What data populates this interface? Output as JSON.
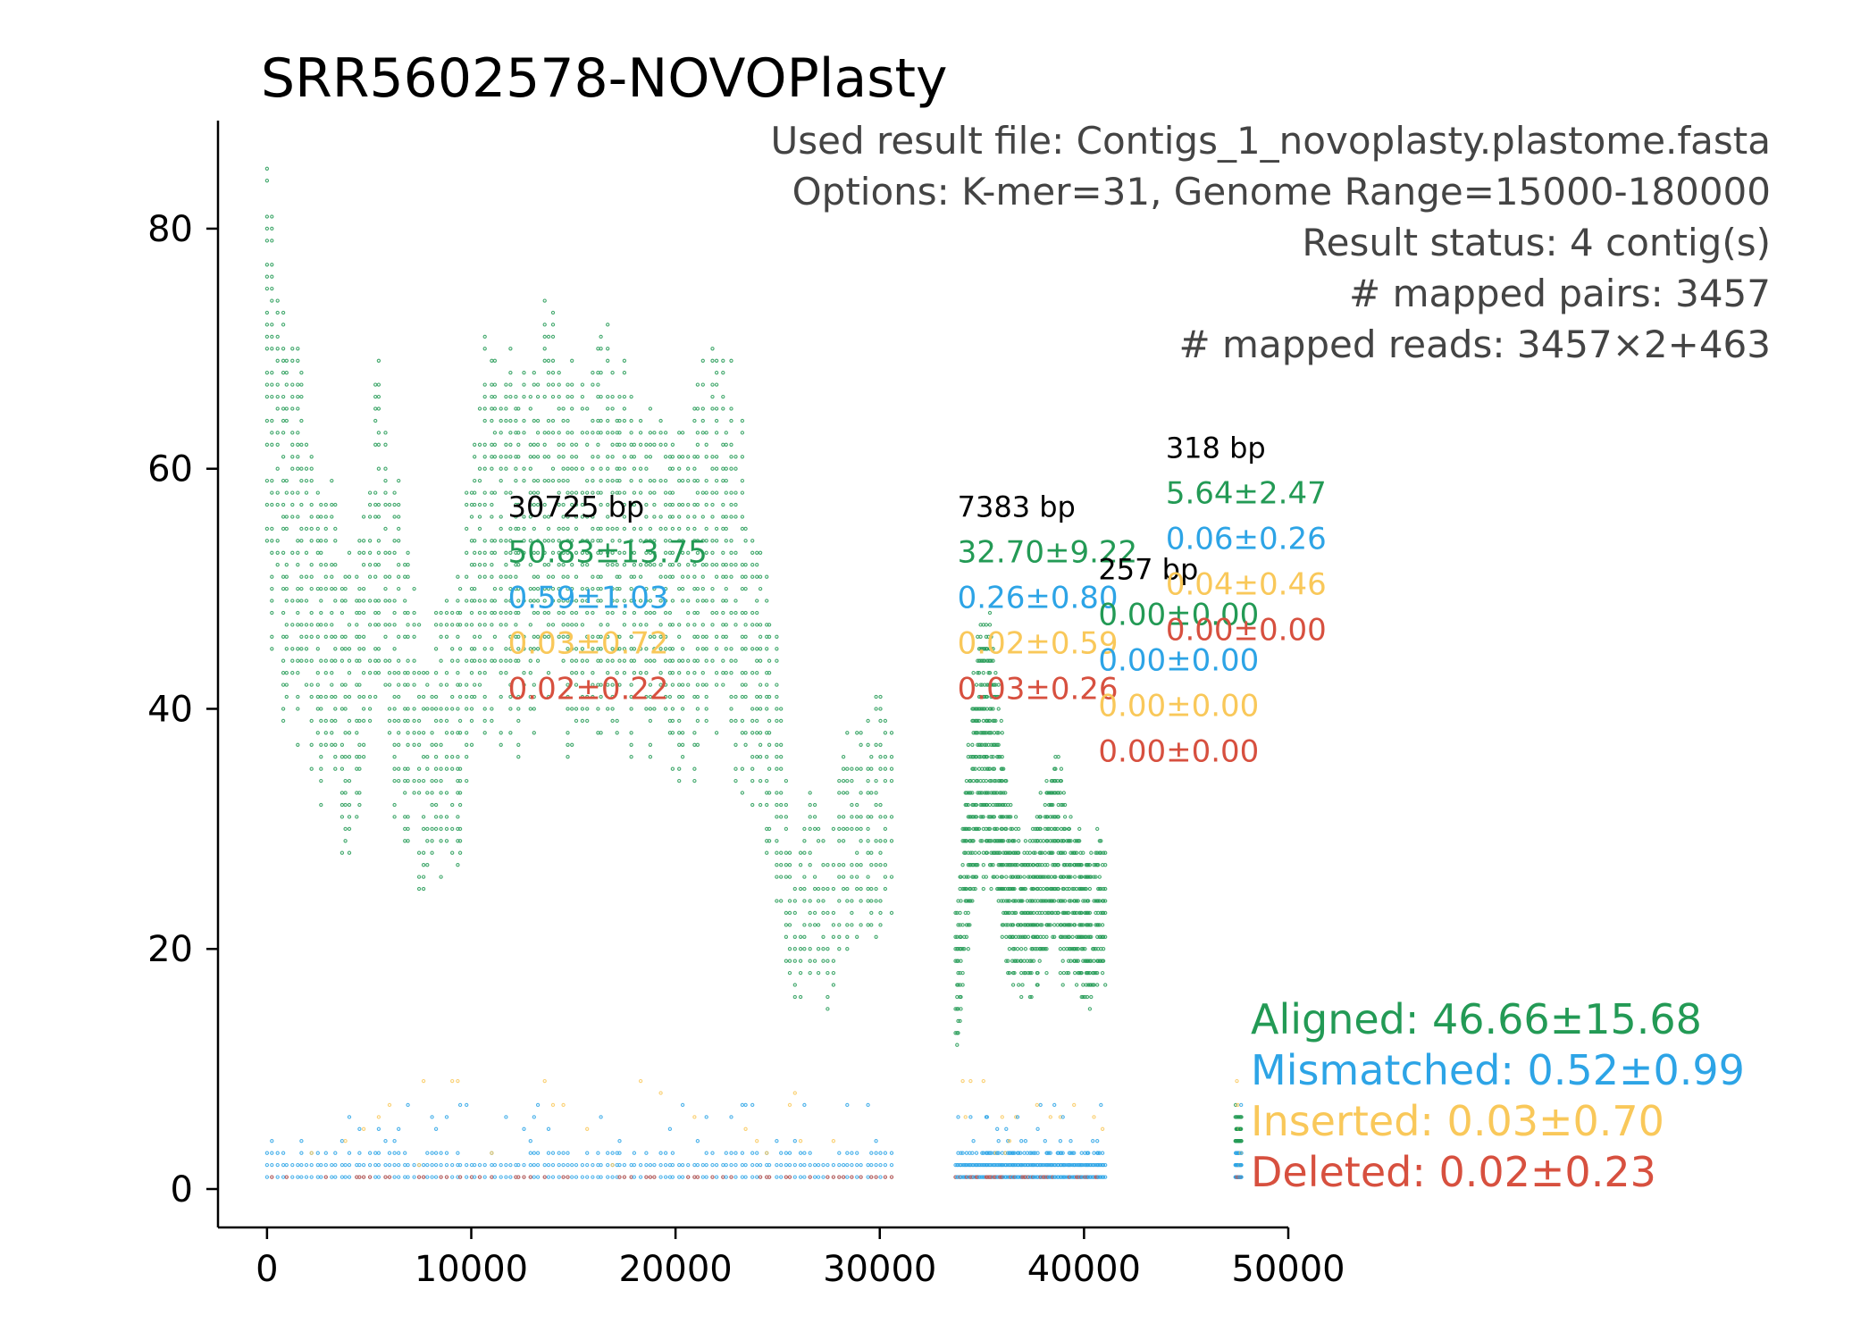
{
  "chart_data": {
    "type": "scatter",
    "title": "SRR5602578-NOVOPlasty",
    "xlabel": "",
    "ylabel": "",
    "xlim": [
      -2400,
      50000
    ],
    "ylim": [
      -3.2,
      89
    ],
    "x_ticks": [
      0,
      10000,
      20000,
      30000,
      40000,
      50000
    ],
    "y_ticks": [
      0,
      20,
      40,
      60,
      80
    ],
    "grid": false,
    "info_lines": [
      "Used result file: Contigs_1_novoplasty.plastome.fasta",
      "Options: K-mer=31, Genome Range=15000-180000",
      "Result status: 4 contig(s)",
      "# mapped pairs: 3457",
      "# mapped reads: 3457×2+463"
    ],
    "colors": {
      "aligned": "#239A55",
      "mismatched": "#2DA4E6",
      "inserted": "#F9C85A",
      "deleted": "#D7503F"
    },
    "contigs": [
      {
        "length_label": "30725 bp",
        "start": 0,
        "end": 30725,
        "label_x": 11800,
        "label_y": 56,
        "aligned": "50.83±13.75",
        "mismatched": "0.59±1.03",
        "inserted": "0.03±0.72",
        "deleted": "0.02±0.22"
      },
      {
        "length_label": "7383 bp",
        "start": 33700,
        "end": 41083,
        "label_x": 33800,
        "label_y": 56,
        "aligned": "32.70±9.22",
        "mismatched": "0.26±0.80",
        "inserted": "0.02±0.59",
        "deleted": "0.03±0.26"
      },
      {
        "length_label": "257 bp",
        "start": 41083,
        "end": 41340,
        "label_x": 40700,
        "label_y": 50.8,
        "aligned": "0.00±0.00",
        "mismatched": "0.00±0.00",
        "inserted": "0.00±0.00",
        "deleted": "0.00±0.00"
      },
      {
        "length_label": "318 bp",
        "start": 47400,
        "end": 47718,
        "label_x": 44000,
        "label_y": 60.9,
        "aligned": "5.64±2.47",
        "mismatched": "0.06±0.26",
        "inserted": "0.04±0.46",
        "deleted": "0.00±0.00"
      }
    ],
    "legend": [
      {
        "label": "Aligned: 46.66±15.68",
        "color": "#239A55"
      },
      {
        "label": "Mismatched: 0.52±0.99",
        "color": "#2DA4E6"
      },
      {
        "label": "Inserted: 0.03±0.70",
        "color": "#F9C85A"
      },
      {
        "label": "Deleted: 0.02±0.23",
        "color": "#D7503F"
      }
    ],
    "legend_position": "bottom-right",
    "coverage_profile_aligned": [
      {
        "x": 0,
        "y": 81
      },
      {
        "x": 300,
        "y": 72
      },
      {
        "x": 800,
        "y": 70
      },
      {
        "x": 1500,
        "y": 64
      },
      {
        "x": 2200,
        "y": 58
      },
      {
        "x": 3000,
        "y": 54
      },
      {
        "x": 3800,
        "y": 50
      },
      {
        "x": 4600,
        "y": 50
      },
      {
        "x": 5400,
        "y": 63
      },
      {
        "x": 6200,
        "y": 56
      },
      {
        "x": 7000,
        "y": 48
      },
      {
        "x": 7800,
        "y": 42
      },
      {
        "x": 8600,
        "y": 44
      },
      {
        "x": 9400,
        "y": 48
      },
      {
        "x": 10200,
        "y": 60
      },
      {
        "x": 11000,
        "y": 68
      },
      {
        "x": 12000,
        "y": 64
      },
      {
        "x": 13000,
        "y": 64
      },
      {
        "x": 14000,
        "y": 68
      },
      {
        "x": 15000,
        "y": 62
      },
      {
        "x": 16000,
        "y": 66
      },
      {
        "x": 17000,
        "y": 64
      },
      {
        "x": 18000,
        "y": 62
      },
      {
        "x": 19000,
        "y": 60
      },
      {
        "x": 20000,
        "y": 58
      },
      {
        "x": 21000,
        "y": 62
      },
      {
        "x": 22000,
        "y": 66
      },
      {
        "x": 23000,
        "y": 60
      },
      {
        "x": 24000,
        "y": 52
      },
      {
        "x": 25000,
        "y": 42
      },
      {
        "x": 25800,
        "y": 24
      },
      {
        "x": 26600,
        "y": 32
      },
      {
        "x": 27400,
        "y": 26
      },
      {
        "x": 28200,
        "y": 36
      },
      {
        "x": 29000,
        "y": 34
      },
      {
        "x": 29800,
        "y": 38
      },
      {
        "x": 30500,
        "y": 36
      },
      {
        "x": 33800,
        "y": 22
      },
      {
        "x": 34600,
        "y": 40
      },
      {
        "x": 35400,
        "y": 46
      },
      {
        "x": 36200,
        "y": 32
      },
      {
        "x": 37000,
        "y": 26
      },
      {
        "x": 37800,
        "y": 30
      },
      {
        "x": 38600,
        "y": 34
      },
      {
        "x": 39400,
        "y": 28
      },
      {
        "x": 40200,
        "y": 26
      },
      {
        "x": 41000,
        "y": 28
      },
      {
        "x": 47500,
        "y": 6
      }
    ]
  }
}
